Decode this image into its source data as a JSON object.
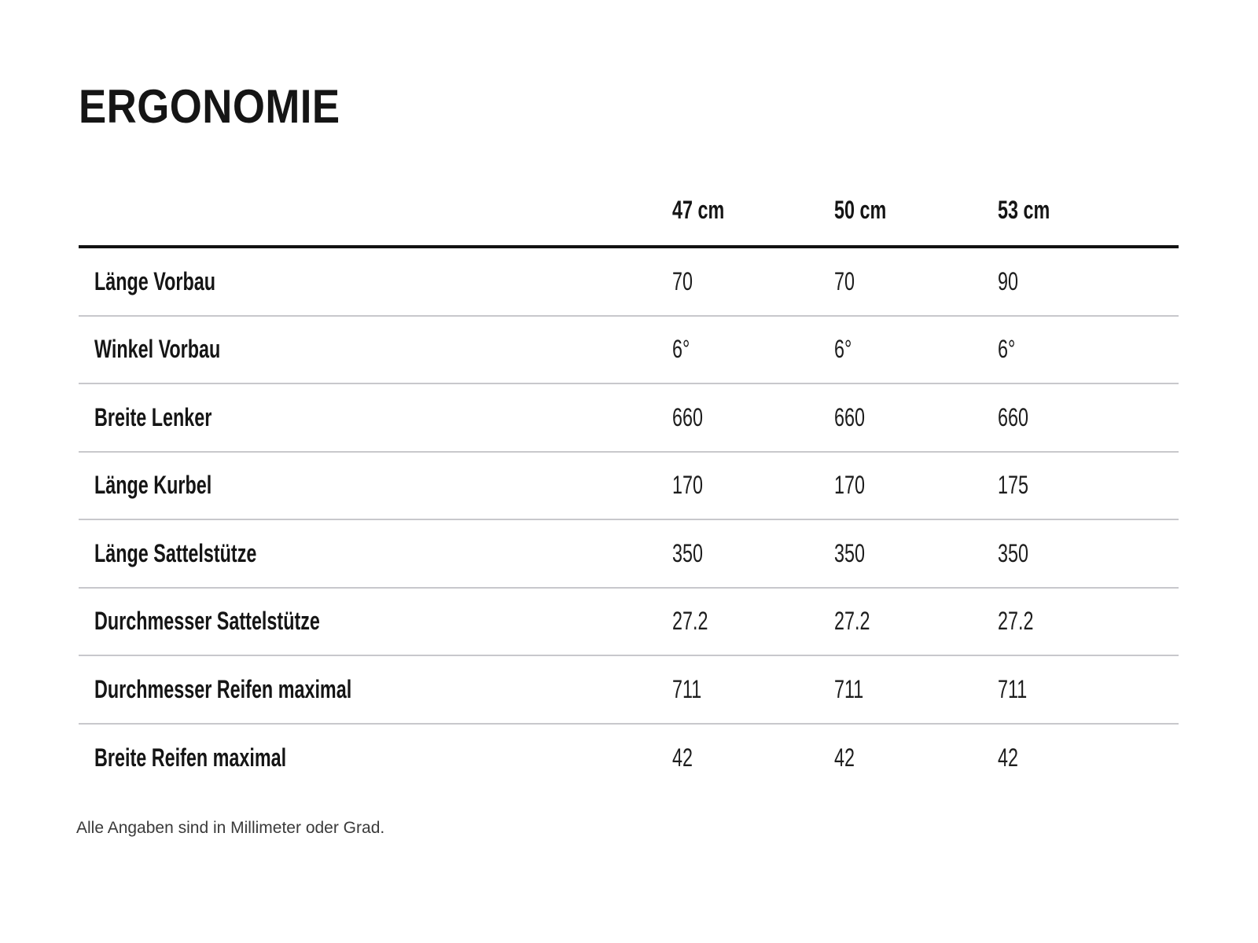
{
  "page": {
    "title": "ERGONOMIE",
    "footnote": "Alle Angaben sind in Millimeter oder Grad."
  },
  "table": {
    "columns": [
      "47 cm",
      "50 cm",
      "53 cm"
    ],
    "rows": [
      {
        "label": "Länge Vorbau",
        "values": [
          "70",
          "70",
          "90"
        ]
      },
      {
        "label": "Winkel Vorbau",
        "values": [
          "6°",
          "6°",
          "6°"
        ]
      },
      {
        "label": "Breite Lenker",
        "values": [
          "660",
          "660",
          "660"
        ]
      },
      {
        "label": "Länge Kurbel",
        "values": [
          "170",
          "170",
          "175"
        ]
      },
      {
        "label": "Länge Sattelstütze",
        "values": [
          "350",
          "350",
          "350"
        ]
      },
      {
        "label": "Durchmesser Sattelstütze",
        "values": [
          "27.2",
          "27.2",
          "27.2"
        ]
      },
      {
        "label": "Durchmesser Reifen maximal",
        "values": [
          "711",
          "711",
          "711"
        ]
      },
      {
        "label": "Breite Reifen maximal",
        "values": [
          "42",
          "42",
          "42"
        ]
      }
    ]
  },
  "colors": {
    "bg": "#ffffff",
    "text-strong": "#151515",
    "text-value": "#1d1d1d",
    "text-footnote": "#3a3a3a",
    "rule-heavy": "#121212",
    "rule-light": "#c8c8cc"
  }
}
